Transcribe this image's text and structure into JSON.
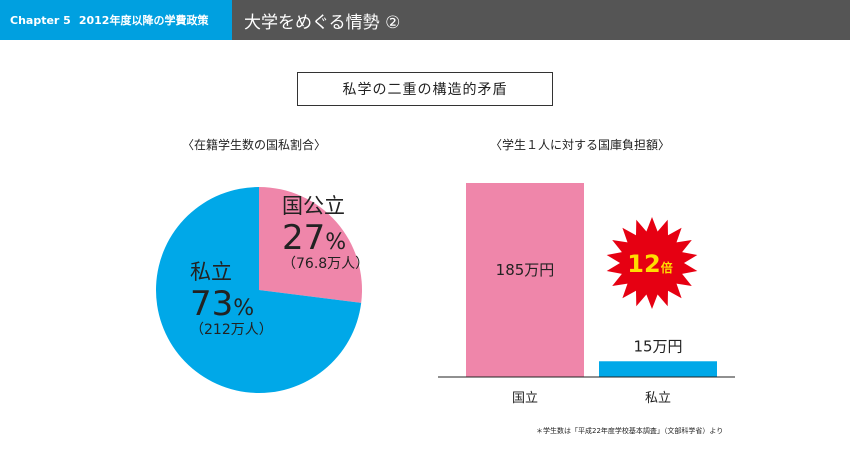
{
  "header": {
    "chapter": "Chapter 5",
    "section": "2012年度以降の学費政策",
    "title": "大学をめぐる情勢 ②"
  },
  "topic": "私学の二重の構造的矛盾",
  "colors": {
    "header_blue": "#00a0e0",
    "header_gray": "#555555",
    "public_pink": "#ef86aa",
    "private_blue": "#00a8e8",
    "burst_red": "#e60012",
    "burst_text": "#ffdd00"
  },
  "chart_data": [
    {
      "type": "pie",
      "title": "〈在籍学生数の国私割合〉",
      "slices": [
        {
          "name": "国公立",
          "value": 27,
          "display": "27",
          "unit": "%",
          "count_label": "（76.8万人）",
          "color": "#ef86aa"
        },
        {
          "name": "私立",
          "value": 73,
          "display": "73",
          "unit": "%",
          "count_label": "（212万人）",
          "color": "#00a8e8"
        }
      ]
    },
    {
      "type": "bar",
      "title": "〈学生１人に対する国庫負担額〉",
      "categories": [
        "国立",
        "私立"
      ],
      "values": [
        185,
        15
      ],
      "value_labels": [
        "185万円",
        "15万円"
      ],
      "colors": [
        "#ef86aa",
        "#00a8e8"
      ],
      "ylim": [
        0,
        185
      ],
      "annotation": {
        "number": "12",
        "unit": "倍"
      }
    }
  ],
  "footnote": "＊学生数は「平成22年度学校基本調査」（文部科学省）より"
}
